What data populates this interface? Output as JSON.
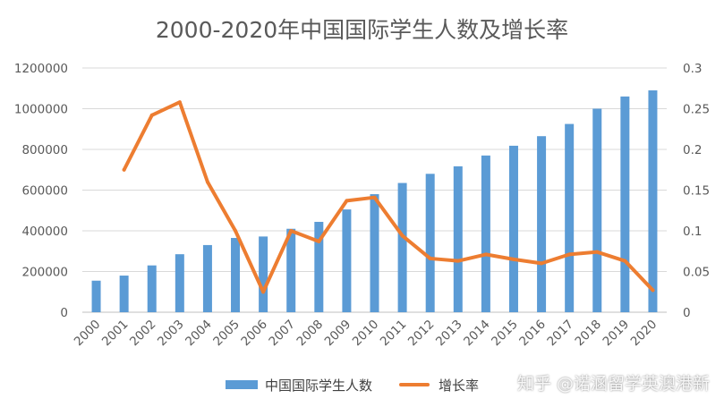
{
  "chart_data": {
    "type": "bar",
    "title": "2000-2020年中国国际学生人数及增长率",
    "categories": [
      "2000",
      "2001",
      "2002",
      "2003",
      "2004",
      "2005",
      "2006",
      "2007",
      "2008",
      "2009",
      "2010",
      "2011",
      "2012",
      "2013",
      "2014",
      "2015",
      "2016",
      "2017",
      "2018",
      "2019",
      "2020"
    ],
    "series": [
      {
        "name": "中国国际学生人数",
        "type": "bar",
        "axis": "left",
        "color": "#5b9bd5",
        "values": [
          155000,
          180000,
          230000,
          285000,
          330000,
          365000,
          372000,
          410000,
          444000,
          505000,
          580000,
          635000,
          680000,
          717000,
          770000,
          818000,
          865000,
          925000,
          1000000,
          1060000,
          1090000
        ]
      },
      {
        "name": "增长率",
        "type": "line",
        "axis": "right",
        "color": "#ed7d31",
        "values": [
          null,
          0.175,
          0.242,
          0.258,
          0.16,
          0.1,
          0.025,
          0.1,
          0.087,
          0.137,
          0.141,
          0.094,
          0.066,
          0.063,
          0.071,
          0.065,
          0.06,
          0.071,
          0.074,
          0.063,
          0.027
        ]
      }
    ],
    "y_left": {
      "ylim": [
        0,
        1200000
      ],
      "ticks": [
        "0",
        "200000",
        "400000",
        "600000",
        "800000",
        "1000000",
        "1200000"
      ]
    },
    "y_right": {
      "ylim": [
        0,
        0.3
      ],
      "ticks": [
        "0",
        "0.05",
        "0.1",
        "0.15",
        "0.2",
        "0.25",
        "0.3"
      ]
    },
    "xlabel": "",
    "ylabel": "",
    "grid": true,
    "legend_position": "bottom"
  },
  "watermark": "知乎 @诺涵留学英澳港新"
}
